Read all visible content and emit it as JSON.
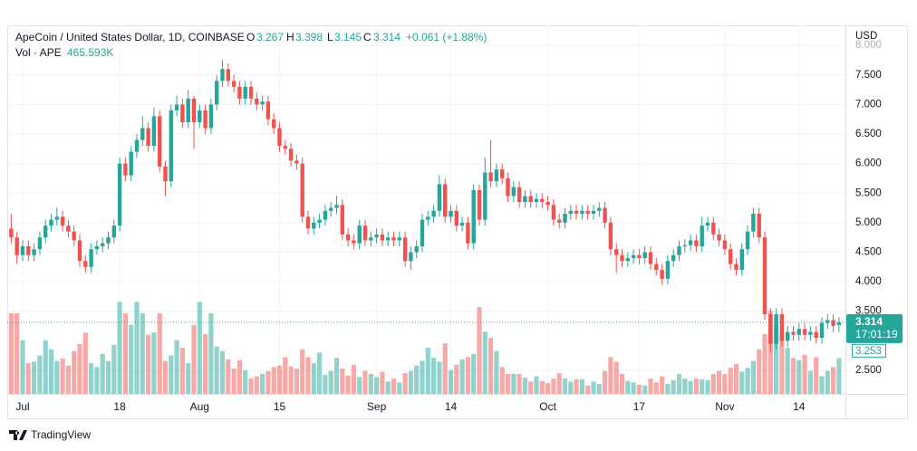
{
  "chart_data": {
    "type": "candlestick",
    "legend": {
      "title": "ApeCoin / United States Dollar, 1D, COINBASE",
      "keys": [
        "O",
        "H",
        "L",
        "C"
      ],
      "change": "+0.061 (+1.88%)"
    },
    "currency": "USD",
    "countdown": "17:01:19",
    "brand": "TradingView",
    "up_color": "#26a69a",
    "down_color": "#ef5350",
    "grid": true,
    "categories": [
      null,
      null,
      "Jul",
      null,
      null,
      null,
      null,
      null,
      null,
      null,
      null,
      null,
      null,
      null,
      null,
      null,
      null,
      null,
      null,
      "18",
      null,
      null,
      null,
      null,
      null,
      null,
      null,
      null,
      null,
      null,
      null,
      null,
      null,
      "Aug",
      null,
      null,
      null,
      null,
      null,
      null,
      null,
      null,
      null,
      null,
      null,
      null,
      null,
      "15",
      null,
      null,
      null,
      null,
      null,
      null,
      null,
      null,
      null,
      null,
      null,
      null,
      null,
      null,
      null,
      null,
      "Sep",
      null,
      null,
      null,
      null,
      null,
      null,
      null,
      null,
      null,
      null,
      null,
      null,
      "14",
      null,
      null,
      null,
      null,
      null,
      null,
      null,
      null,
      null,
      null,
      null,
      null,
      null,
      null,
      null,
      null,
      "Oct",
      null,
      null,
      null,
      null,
      null,
      null,
      null,
      null,
      null,
      null,
      null,
      null,
      null,
      null,
      null,
      "17",
      null,
      null,
      null,
      null,
      null,
      null,
      null,
      null,
      null,
      null,
      null,
      null,
      null,
      null,
      "Nov",
      null,
      null,
      null,
      null,
      null,
      null,
      null,
      null,
      null,
      null,
      null,
      null,
      "14",
      null,
      null,
      null,
      null,
      null,
      null,
      null
    ],
    "open": [
      4.9,
      4.75,
      4.45,
      4.6,
      4.45,
      4.55,
      4.75,
      4.95,
      5.05,
      5.1,
      4.95,
      4.85,
      4.7,
      4.35,
      4.25,
      4.55,
      4.6,
      4.65,
      4.75,
      4.95,
      6.0,
      5.8,
      6.2,
      6.4,
      6.6,
      6.3,
      6.8,
      5.95,
      5.7,
      6.9,
      7.0,
      6.7,
      7.1,
      6.7,
      6.9,
      6.6,
      7.0,
      7.4,
      7.6,
      7.4,
      7.3,
      7.1,
      7.3,
      7.1,
      7.0,
      7.05,
      6.75,
      6.6,
      6.3,
      6.25,
      6.05,
      6.0,
      5.1,
      4.9,
      5.0,
      5.05,
      5.2,
      5.25,
      5.3,
      4.8,
      4.7,
      4.65,
      4.95,
      4.7,
      4.75,
      4.8,
      4.7,
      4.75,
      4.7,
      4.75,
      4.35,
      4.5,
      4.6,
      5.05,
      5.1,
      5.2,
      5.65,
      5.1,
      5.2,
      4.95,
      5.0,
      4.65,
      5.55,
      5.05,
      5.85,
      5.7,
      5.9,
      5.75,
      5.45,
      5.6,
      5.35,
      5.45,
      5.35,
      5.4,
      5.35,
      5.3,
      5.05,
      5.0,
      5.15,
      5.2,
      5.15,
      5.2,
      5.15,
      5.2,
      5.25,
      5.0,
      4.55,
      4.45,
      4.35,
      4.4,
      4.45,
      4.4,
      4.5,
      4.3,
      4.2,
      4.05,
      4.35,
      4.45,
      4.6,
      4.62,
      4.7,
      4.6,
      4.95,
      5.0,
      4.8,
      4.7,
      4.55,
      4.3,
      4.2,
      4.55,
      4.85,
      5.15,
      4.75,
      3.45,
      2.95,
      3.45,
      3.0,
      3.15,
      3.1,
      3.2,
      3.1,
      3.15,
      3.05,
      3.3,
      3.35,
      3.267
    ],
    "high": [
      5.15,
      4.85,
      4.7,
      4.7,
      4.65,
      4.85,
      5.05,
      5.15,
      5.25,
      5.2,
      5.05,
      4.95,
      4.8,
      4.45,
      4.65,
      4.7,
      4.75,
      4.85,
      5.05,
      6.1,
      6.1,
      6.3,
      6.5,
      6.8,
      6.7,
      6.95,
      6.9,
      6.05,
      7.0,
      7.15,
      7.1,
      7.25,
      7.15,
      7.0,
      7.0,
      7.1,
      7.5,
      7.75,
      7.7,
      7.5,
      7.4,
      7.4,
      7.4,
      7.2,
      7.15,
      7.15,
      6.85,
      6.7,
      6.4,
      6.35,
      6.15,
      6.1,
      5.2,
      5.1,
      5.15,
      5.3,
      5.35,
      5.45,
      5.4,
      4.9,
      4.8,
      5.05,
      5.05,
      4.85,
      4.9,
      4.9,
      4.85,
      4.85,
      4.85,
      4.85,
      4.6,
      4.7,
      5.15,
      5.2,
      5.3,
      5.8,
      5.75,
      5.3,
      5.3,
      5.1,
      5.1,
      5.65,
      5.65,
      6.1,
      6.4,
      6.0,
      6.0,
      5.85,
      5.7,
      5.7,
      5.55,
      5.55,
      5.5,
      5.5,
      5.45,
      5.4,
      5.15,
      5.25,
      5.3,
      5.3,
      5.3,
      5.3,
      5.3,
      5.35,
      5.35,
      5.1,
      4.65,
      4.55,
      4.5,
      4.55,
      4.55,
      4.6,
      4.6,
      4.4,
      4.3,
      4.45,
      4.55,
      4.7,
      4.72,
      4.8,
      4.8,
      5.1,
      5.1,
      5.1,
      4.9,
      4.8,
      4.65,
      4.4,
      4.65,
      4.95,
      5.25,
      5.25,
      4.85,
      3.55,
      3.55,
      3.55,
      3.25,
      3.25,
      3.3,
      3.3,
      3.25,
      3.25,
      3.4,
      3.45,
      3.45,
      3.398
    ],
    "low": [
      4.65,
      4.3,
      4.35,
      4.35,
      4.35,
      4.45,
      4.65,
      4.85,
      4.95,
      4.85,
      4.75,
      4.6,
      4.25,
      4.15,
      4.15,
      4.45,
      4.5,
      4.55,
      4.65,
      4.85,
      5.7,
      5.7,
      6.1,
      6.3,
      6.2,
      6.2,
      5.85,
      5.45,
      5.6,
      6.8,
      6.6,
      6.6,
      6.25,
      6.6,
      6.5,
      6.5,
      6.9,
      7.3,
      7.3,
      7.2,
      7.0,
      7.0,
      7.0,
      6.9,
      6.9,
      6.65,
      6.5,
      6.2,
      6.15,
      5.95,
      5.9,
      5.0,
      4.8,
      4.8,
      4.9,
      4.95,
      5.1,
      5.15,
      4.7,
      4.6,
      4.55,
      4.55,
      4.6,
      4.6,
      4.65,
      4.6,
      4.6,
      4.6,
      4.6,
      4.25,
      4.2,
      4.4,
      4.5,
      4.95,
      5.0,
      5.1,
      5.0,
      5.0,
      4.85,
      4.85,
      4.55,
      4.55,
      4.95,
      4.95,
      5.6,
      5.6,
      5.65,
      5.35,
      5.35,
      5.25,
      5.25,
      5.25,
      5.25,
      5.25,
      5.2,
      4.95,
      4.9,
      4.9,
      5.05,
      5.05,
      5.05,
      5.05,
      5.05,
      5.1,
      4.9,
      4.45,
      4.15,
      4.25,
      4.25,
      4.3,
      4.3,
      4.3,
      4.2,
      4.1,
      3.95,
      3.95,
      4.25,
      4.35,
      4.5,
      4.52,
      4.5,
      4.5,
      4.85,
      4.7,
      4.6,
      4.45,
      4.2,
      4.1,
      4.1,
      4.45,
      4.75,
      4.65,
      3.35,
      2.8,
      2.85,
      2.9,
      2.9,
      3.0,
      3.0,
      3.0,
      3.0,
      2.95,
      2.95,
      3.2,
      3.15,
      3.145
    ],
    "close": [
      4.75,
      4.45,
      4.6,
      4.45,
      4.55,
      4.75,
      4.95,
      5.05,
      5.1,
      4.95,
      4.85,
      4.7,
      4.35,
      4.25,
      4.55,
      4.6,
      4.65,
      4.75,
      4.95,
      6.0,
      5.8,
      6.2,
      6.4,
      6.6,
      6.3,
      6.8,
      5.95,
      5.7,
      6.9,
      7.0,
      6.7,
      7.1,
      6.7,
      6.9,
      6.6,
      7.0,
      7.4,
      7.6,
      7.4,
      7.3,
      7.1,
      7.3,
      7.1,
      7.0,
      7.05,
      6.75,
      6.6,
      6.3,
      6.25,
      6.05,
      6.0,
      5.1,
      4.9,
      5.0,
      5.05,
      5.2,
      5.25,
      5.3,
      4.8,
      4.7,
      4.65,
      4.95,
      4.7,
      4.75,
      4.8,
      4.7,
      4.75,
      4.7,
      4.75,
      4.35,
      4.5,
      4.6,
      5.05,
      5.1,
      5.2,
      5.65,
      5.1,
      5.2,
      4.95,
      5.0,
      4.65,
      5.55,
      5.05,
      5.85,
      5.7,
      5.9,
      5.75,
      5.45,
      5.6,
      5.35,
      5.45,
      5.35,
      5.4,
      5.35,
      5.3,
      5.05,
      5.0,
      5.15,
      5.2,
      5.15,
      5.2,
      5.15,
      5.2,
      5.25,
      5.0,
      4.55,
      4.45,
      4.35,
      4.4,
      4.45,
      4.4,
      4.5,
      4.3,
      4.2,
      4.05,
      4.35,
      4.45,
      4.6,
      4.62,
      4.7,
      4.6,
      4.95,
      5.0,
      4.8,
      4.7,
      4.55,
      4.3,
      4.2,
      4.55,
      4.85,
      5.15,
      4.75,
      3.45,
      2.95,
      3.45,
      3.0,
      3.15,
      3.1,
      3.2,
      3.1,
      3.15,
      3.05,
      3.3,
      3.35,
      3.253,
      3.314
    ],
    "volume": {
      "name": "Vol · APE",
      "axis": "y2",
      "last_value_label": "465.593K",
      "values": [
        1050000,
        1050000,
        700000,
        400000,
        420000,
        500000,
        700000,
        580000,
        430000,
        460000,
        370000,
        560000,
        650000,
        800000,
        400000,
        350000,
        520000,
        430000,
        640000,
        1200000,
        1050000,
        900000,
        1200000,
        1050000,
        770000,
        800000,
        1050000,
        430000,
        500000,
        700000,
        600000,
        400000,
        900000,
        1200000,
        780000,
        1050000,
        620000,
        560000,
        450000,
        330000,
        440000,
        310000,
        200000,
        230000,
        260000,
        300000,
        350000,
        370000,
        480000,
        360000,
        330000,
        580000,
        480000,
        400000,
        540000,
        250000,
        300000,
        470000,
        330000,
        240000,
        380000,
        220000,
        300000,
        260000,
        220000,
        290000,
        160000,
        200000,
        150000,
        270000,
        300000,
        370000,
        430000,
        600000,
        470000,
        420000,
        660000,
        310000,
        380000,
        450000,
        480000,
        520000,
        1130000,
        810000,
        730000,
        560000,
        350000,
        260000,
        260000,
        260000,
        210000,
        160000,
        230000,
        170000,
        140000,
        200000,
        270000,
        200000,
        160000,
        190000,
        190000,
        110000,
        160000,
        130000,
        300000,
        480000,
        420000,
        260000,
        170000,
        150000,
        120000,
        110000,
        200000,
        150000,
        230000,
        130000,
        180000,
        260000,
        200000,
        170000,
        200000,
        190000,
        180000,
        260000,
        300000,
        260000,
        340000,
        390000,
        290000,
        340000,
        430000,
        580000,
        780000,
        1080000,
        900000,
        780000,
        600000,
        470000,
        440000,
        510000,
        300000,
        480000,
        230000,
        300000,
        350000,
        465593
      ]
    },
    "ylim": [
      2.1,
      8.34
    ],
    "yticks": [
      {
        "value": 2.5,
        "label": "2.500"
      },
      {
        "value": 3.5,
        "label": "3.500"
      },
      {
        "value": 4,
        "label": "4.000"
      },
      {
        "value": 4.5,
        "label": "4.500"
      },
      {
        "value": 5,
        "label": "5.000"
      },
      {
        "value": 5.5,
        "label": "5.500"
      },
      {
        "value": 6,
        "label": "6.000"
      },
      {
        "value": 6.5,
        "label": "6.500"
      },
      {
        "value": 7,
        "label": "7.000"
      },
      {
        "value": 7.5,
        "label": "7.500"
      },
      {
        "value": 8,
        "label": "8.000"
      }
    ],
    "y2lim": [
      0,
      4800000
    ]
  }
}
